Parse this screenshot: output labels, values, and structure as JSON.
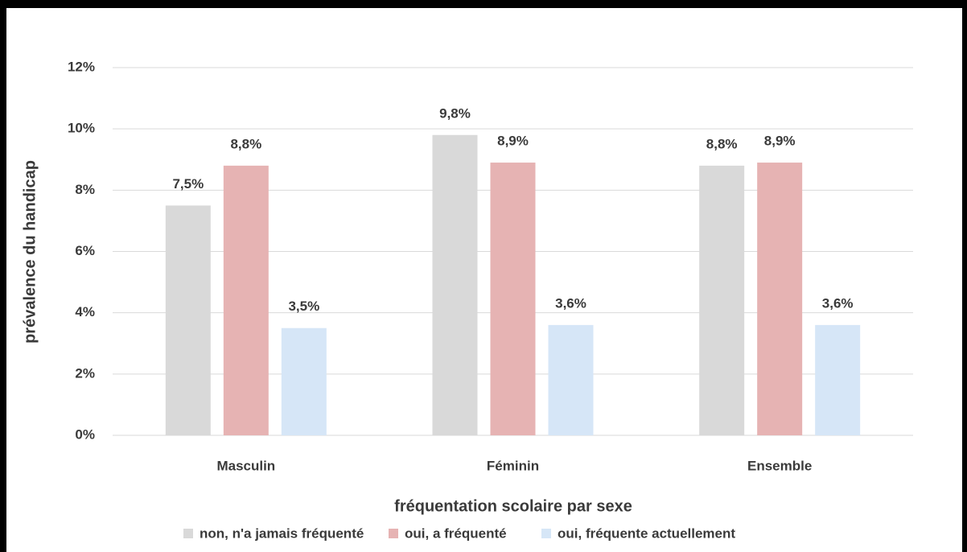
{
  "chart_data": {
    "type": "bar",
    "x_label": "fréquentation scolaire par sexe",
    "y_label": "prévalence du handicap",
    "categories": [
      "Masculin",
      "Féminin",
      "Ensemble"
    ],
    "series": [
      {
        "name": "non, n'a jamais fréquenté",
        "color": "#d9d9d9",
        "values": [
          7.5,
          9.8,
          8.8
        ],
        "value_labels": [
          "7,5%",
          "9,8%",
          "8,8%"
        ]
      },
      {
        "name": "oui, a fréquenté",
        "color": "#e6b3b3",
        "values": [
          8.8,
          8.9,
          8.9
        ],
        "value_labels": [
          "8,8%",
          "8,9%",
          "8,9%"
        ]
      },
      {
        "name": "oui, fréquente actuellement",
        "color": "#d6e6f7",
        "values": [
          3.5,
          3.6,
          3.6
        ],
        "value_labels": [
          "3,5%",
          "3,6%",
          "3,6%"
        ]
      }
    ],
    "ylim": [
      0,
      12
    ],
    "yticks": [
      {
        "value": 0,
        "label": "0%"
      },
      {
        "value": 2,
        "label": "2%"
      },
      {
        "value": 4,
        "label": "4%"
      },
      {
        "value": 6,
        "label": "6%"
      },
      {
        "value": 8,
        "label": "8%"
      },
      {
        "value": 10,
        "label": "10%"
      },
      {
        "value": 12,
        "label": "12%"
      }
    ],
    "grid": true,
    "legend": "bottom"
  }
}
